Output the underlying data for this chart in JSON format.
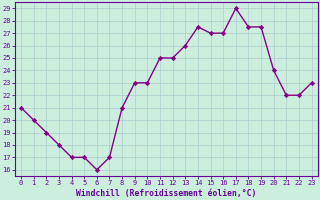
{
  "x": [
    0,
    1,
    2,
    3,
    4,
    5,
    6,
    7,
    8,
    9,
    10,
    11,
    12,
    13,
    14,
    15,
    16,
    17,
    18,
    19,
    20,
    21,
    22,
    23
  ],
  "y": [
    21,
    20,
    19,
    18,
    17,
    17,
    16,
    17,
    21,
    23,
    23,
    25,
    25,
    26,
    27.5,
    27,
    27,
    29,
    27.5,
    27.5,
    24,
    22,
    22,
    23
  ],
  "line_color": "#880088",
  "marker": "D",
  "marker_size": 2.2,
  "bg_color": "#cceedd",
  "grid_color": "#aacccc",
  "xlabel": "Windchill (Refroidissement éolien,°C)",
  "ylim_min": 15.5,
  "ylim_max": 29.5,
  "xlim_min": -0.5,
  "xlim_max": 23.5,
  "yticks": [
    16,
    17,
    18,
    19,
    20,
    21,
    22,
    23,
    24,
    25,
    26,
    27,
    28,
    29
  ],
  "xticks": [
    0,
    1,
    2,
    3,
    4,
    5,
    6,
    7,
    8,
    9,
    10,
    11,
    12,
    13,
    14,
    15,
    16,
    17,
    18,
    19,
    20,
    21,
    22,
    23
  ],
  "tick_fontsize": 5.0,
  "label_fontsize": 5.8,
  "spine_color": "#660099",
  "tick_color": "#660099",
  "linewidth": 1.0
}
